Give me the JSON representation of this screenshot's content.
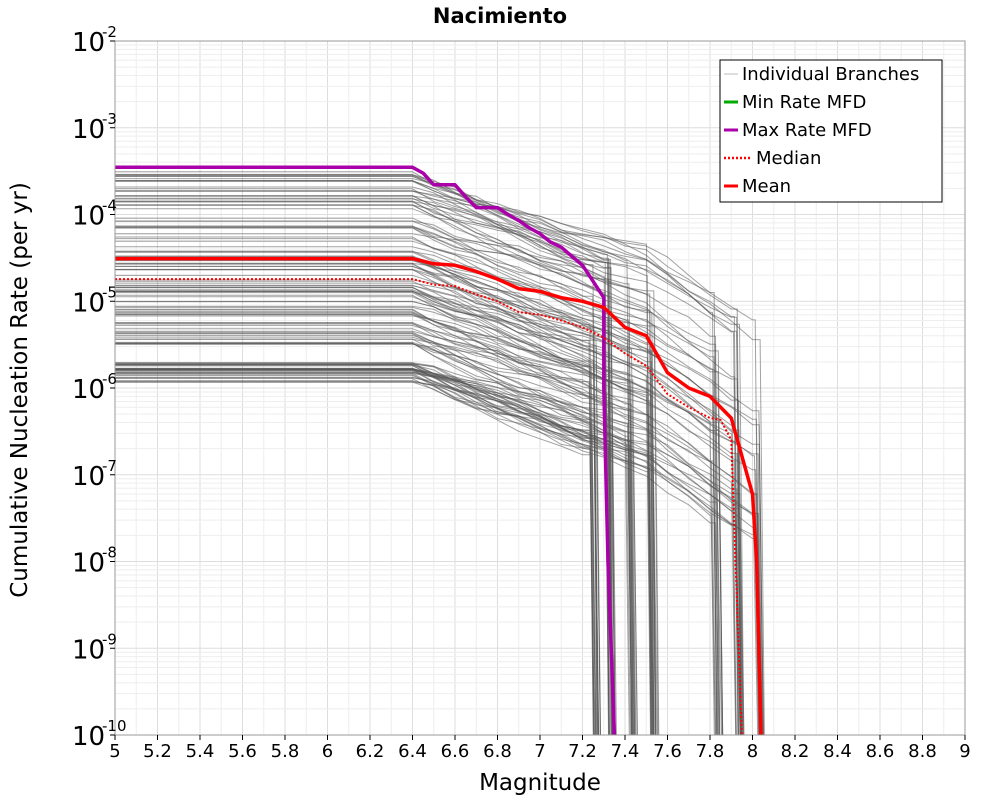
{
  "chart_data": {
    "type": "line",
    "title": "Nacimiento",
    "xlabel": "Magnitude",
    "ylabel": "Cumulative Nucleation Rate (per yr)",
    "xlim": [
      5,
      9
    ],
    "ylim": [
      1e-10,
      0.01
    ],
    "yscale": "log",
    "grid": true,
    "legend_position": "top-right",
    "x_ticks": [
      "5",
      "5.2",
      "5.4",
      "5.6",
      "5.8",
      "6",
      "6.2",
      "6.4",
      "6.6",
      "6.8",
      "7",
      "7.2",
      "7.4",
      "7.6",
      "7.8",
      "8",
      "8.2",
      "8.4",
      "8.6",
      "8.8",
      "9"
    ],
    "y_ticks": [
      {
        "base": "10",
        "exp": "-2"
      },
      {
        "base": "10",
        "exp": "-3"
      },
      {
        "base": "10",
        "exp": "-4"
      },
      {
        "base": "10",
        "exp": "-5"
      },
      {
        "base": "10",
        "exp": "-6"
      },
      {
        "base": "10",
        "exp": "-7"
      },
      {
        "base": "10",
        "exp": "-8"
      },
      {
        "base": "10",
        "exp": "-9"
      },
      {
        "base": "10",
        "exp": "-10"
      }
    ],
    "series": [
      {
        "name": "Max Rate MFD",
        "color": "#aa00aa",
        "style": "solid",
        "x": [
          5.0,
          6.4,
          6.45,
          6.5,
          6.55,
          6.6,
          6.65,
          6.7,
          6.75,
          6.8,
          6.85,
          6.9,
          6.95,
          7.0,
          7.05,
          7.1,
          7.15,
          7.2,
          7.25,
          7.3,
          7.3,
          7.32,
          7.35
        ],
        "y": [
          0.00035,
          0.00035,
          0.0003,
          0.00022,
          0.00022,
          0.00022,
          0.00016,
          0.00012,
          0.00012,
          0.00012,
          0.0001,
          8.5e-05,
          7e-05,
          6e-05,
          4.8e-05,
          4.2e-05,
          3.3e-05,
          2.6e-05,
          1.7e-05,
          1.1e-05,
          1e-06,
          1e-08,
          1e-10
        ]
      },
      {
        "name": "Median",
        "color": "#ff0000",
        "style": "dotted",
        "x": [
          5.0,
          6.4,
          6.5,
          6.6,
          6.7,
          6.8,
          6.9,
          7.0,
          7.1,
          7.2,
          7.3,
          7.4,
          7.5,
          7.6,
          7.7,
          7.8,
          7.85,
          7.9,
          7.92,
          7.95
        ],
        "y": [
          1.8e-05,
          1.8e-05,
          1.55e-05,
          1.5e-05,
          1.2e-05,
          1e-05,
          7.5e-06,
          7e-06,
          6e-06,
          5e-06,
          3.8e-06,
          2.5e-06,
          1.8e-06,
          8.5e-07,
          6e-07,
          4.5e-07,
          4.3e-07,
          2.5e-07,
          1e-08,
          1e-10
        ]
      },
      {
        "name": "Mean",
        "color": "#ff0000",
        "style": "solid",
        "x": [
          5.0,
          6.4,
          6.5,
          6.6,
          6.7,
          6.8,
          6.9,
          7.0,
          7.1,
          7.2,
          7.3,
          7.4,
          7.5,
          7.6,
          7.7,
          7.8,
          7.9,
          8.0,
          8.02,
          8.04
        ],
        "y": [
          3.1e-05,
          3.1e-05,
          2.7e-05,
          2.6e-05,
          2.2e-05,
          1.8e-05,
          1.4e-05,
          1.3e-05,
          1.1e-05,
          1e-05,
          8.5e-06,
          5e-06,
          4e-06,
          1.5e-06,
          1e-06,
          8e-07,
          4.5e-07,
          6e-08,
          1e-08,
          1e-10
        ]
      }
    ],
    "legend": [
      {
        "label": "Individual Branches",
        "color": "#bbbbbb",
        "style": "thin"
      },
      {
        "label": "Min Rate MFD",
        "color": "#00aa00",
        "style": "solid"
      },
      {
        "label": "Max Rate MFD",
        "color": "#aa00aa",
        "style": "solid"
      },
      {
        "label": "Median",
        "color": "#ff0000",
        "style": "dotted"
      },
      {
        "label": "Mean",
        "color": "#ff0000",
        "style": "solid"
      }
    ]
  }
}
